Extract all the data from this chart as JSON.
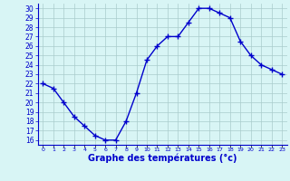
{
  "hours": [
    0,
    1,
    2,
    3,
    4,
    5,
    6,
    7,
    8,
    9,
    10,
    11,
    12,
    13,
    14,
    15,
    16,
    17,
    18,
    19,
    20,
    21,
    22,
    23
  ],
  "temperatures": [
    22,
    21.5,
    20,
    18.5,
    17.5,
    16.5,
    16,
    16,
    18,
    21,
    24.5,
    26,
    27,
    27,
    28.5,
    30,
    30,
    29.5,
    29,
    26.5,
    25,
    24,
    23.5,
    23
  ],
  "line_color": "#0000cc",
  "marker": "+",
  "marker_size": 4,
  "bg_color": "#d8f5f5",
  "grid_color": "#aacccc",
  "title": "Graphe des températures (°c)",
  "title_color": "#0000cc",
  "xlim": [
    -0.5,
    23.5
  ],
  "ylim": [
    15.5,
    30.5
  ],
  "yticks": [
    16,
    17,
    18,
    19,
    20,
    21,
    22,
    23,
    24,
    25,
    26,
    27,
    28,
    29,
    30
  ],
  "xtick_labels": [
    "0",
    "1",
    "2",
    "3",
    "4",
    "5",
    "6",
    "7",
    "8",
    "9",
    "10",
    "11",
    "12",
    "13",
    "14",
    "15",
    "16",
    "17",
    "18",
    "19",
    "20",
    "21",
    "22",
    "23"
  ]
}
